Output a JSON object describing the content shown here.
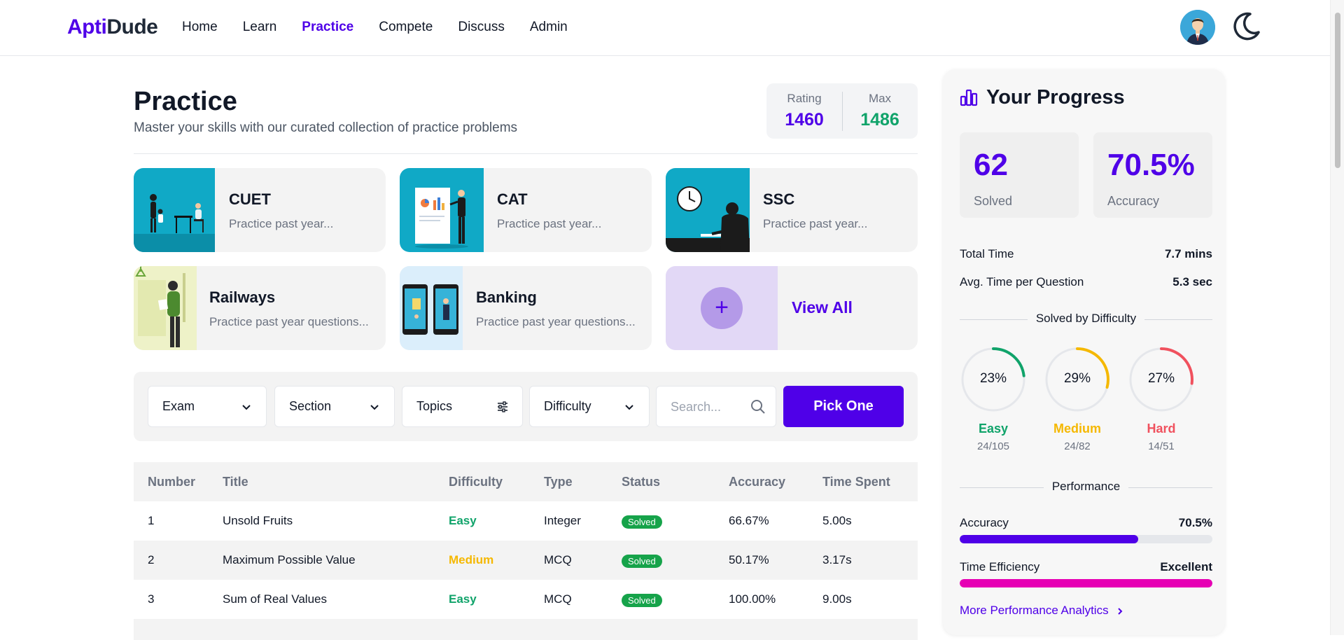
{
  "nav": {
    "logo_part1": "Apti",
    "logo_part2": "Dude",
    "links": [
      "Home",
      "Learn",
      "Practice",
      "Compete",
      "Discuss",
      "Admin"
    ],
    "active": "Practice",
    "accent": "#4f00e8"
  },
  "header": {
    "title": "Practice",
    "subtitle": "Master your skills with our curated collection of practice problems",
    "rating_label": "Rating",
    "rating_value": "1460",
    "max_label": "Max",
    "max_value": "1486"
  },
  "cards": [
    {
      "title": "CUET",
      "desc": "Practice past year..."
    },
    {
      "title": "CAT",
      "desc": "Practice past year..."
    },
    {
      "title": "SSC",
      "desc": "Practice past year..."
    },
    {
      "title": "Railways",
      "desc": "Practice past year questions..."
    },
    {
      "title": "Banking",
      "desc": "Practice past year questions..."
    }
  ],
  "view_all": {
    "label": "View All",
    "icon": "+"
  },
  "filters": {
    "exam": "Exam",
    "section": "Section",
    "topics": "Topics",
    "difficulty": "Difficulty",
    "search_placeholder": "Search...",
    "pick_one": "Pick One"
  },
  "table": {
    "headers": [
      "Number",
      "Title",
      "Difficulty",
      "Type",
      "Status",
      "Accuracy",
      "Time Spent"
    ],
    "rows": [
      {
        "number": "1",
        "title": "Unsold Fruits",
        "difficulty": "Easy",
        "type": "Integer",
        "status": "Solved",
        "accuracy": "66.67%",
        "time": "5.00s"
      },
      {
        "number": "2",
        "title": "Maximum Possible Value",
        "difficulty": "Medium",
        "type": "MCQ",
        "status": "Solved",
        "accuracy": "50.17%",
        "time": "3.17s"
      },
      {
        "number": "3",
        "title": "Sum of Real Values",
        "difficulty": "Easy",
        "type": "MCQ",
        "status": "Solved",
        "accuracy": "100.00%",
        "time": "9.00s"
      }
    ]
  },
  "progress": {
    "title": "Your Progress",
    "solved_value": "62",
    "solved_label": "Solved",
    "accuracy_value": "70.5%",
    "accuracy_label": "Accuracy",
    "total_time_label": "Total Time",
    "total_time_value": "7.7 mins",
    "avg_time_label": "Avg. Time per Question",
    "avg_time_value": "5.3 sec",
    "difficulty_heading": "Solved by Difficulty",
    "difficulty": [
      {
        "name": "Easy",
        "percent": "23%",
        "fraction": 0.23,
        "count": "24/105",
        "color": "#10a36a"
      },
      {
        "name": "Medium",
        "percent": "29%",
        "fraction": 0.29,
        "count": "24/82",
        "color": "#f5b800"
      },
      {
        "name": "Hard",
        "percent": "27%",
        "fraction": 0.27,
        "count": "14/51",
        "color": "#f0515e"
      }
    ],
    "performance_heading": "Performance",
    "perf_accuracy_label": "Accuracy",
    "perf_accuracy_value": "70.5%",
    "perf_accuracy_fraction": 0.705,
    "efficiency_label": "Time Efficiency",
    "efficiency_value": "Excellent",
    "efficiency_fraction": 1.0,
    "more_link": "More Performance Analytics"
  },
  "colors": {
    "easy": "#10a36a",
    "medium": "#f5b800",
    "hard": "#f0515e",
    "solved_badge": "#16a34a",
    "max_green": "#10a36a",
    "efficiency": "#e600b4"
  }
}
